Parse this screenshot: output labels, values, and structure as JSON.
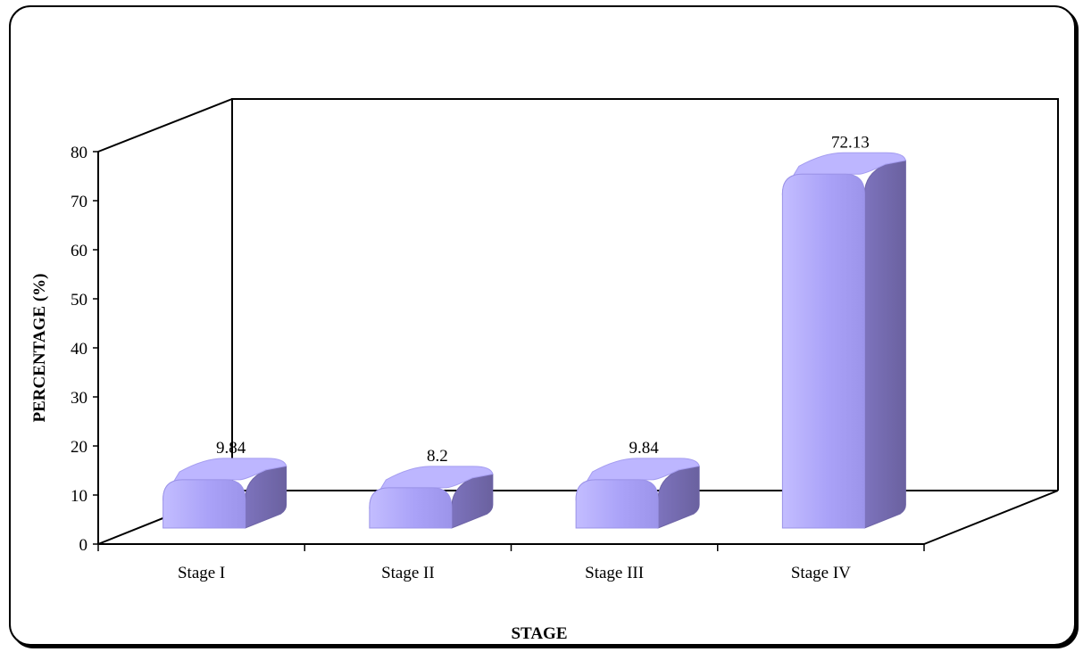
{
  "chart_data": {
    "type": "bar",
    "categories": [
      "Stage I",
      "Stage II",
      "Stage III",
      "Stage IV"
    ],
    "values": [
      9.84,
      8.2,
      9.84,
      72.13
    ],
    "data_labels": [
      "9.84",
      "8.2",
      "9.84",
      "72.13"
    ],
    "title": "",
    "xlabel": "STAGE",
    "ylabel": "PERCENTAGE (%)",
    "ylim": [
      0,
      80
    ],
    "yticks": [
      "0",
      "10",
      "20",
      "30",
      "40",
      "50",
      "60",
      "70",
      "80"
    ],
    "grid": false,
    "legend": "none",
    "style": "3d",
    "colors": {
      "bar_front": "#aaa2f8",
      "bar_side": "#6e64a6",
      "bar_top": "#bdb6ff",
      "axis": "#000000"
    }
  }
}
